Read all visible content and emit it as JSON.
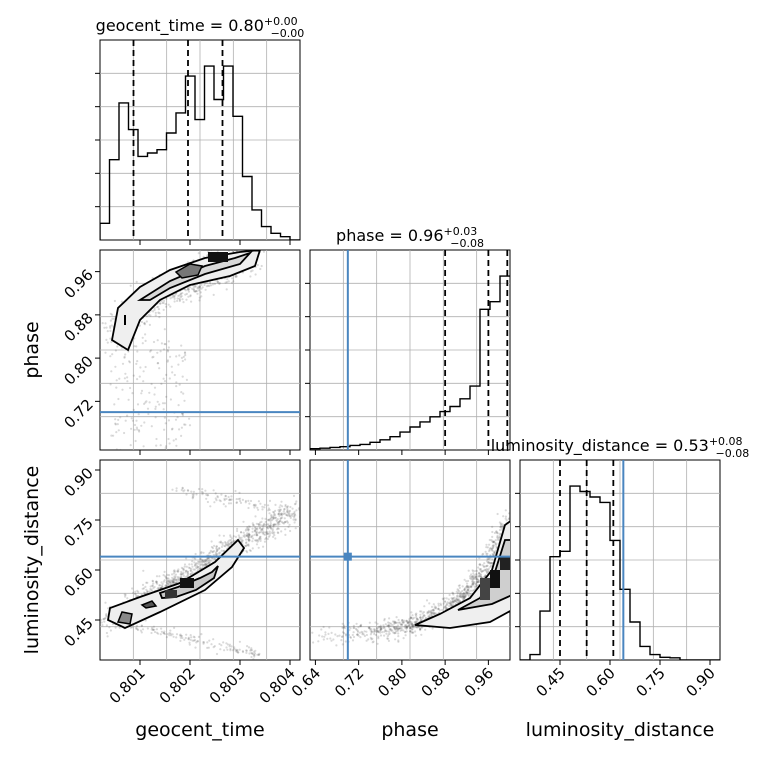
{
  "chart_data": {
    "type": "corner",
    "parameters": [
      "geocent_time",
      "phase",
      "luminosity_distance"
    ],
    "xlabels": [
      "geocent_time",
      "phase",
      "luminosity_distance"
    ],
    "ylabels": [
      "phase",
      "luminosity_distance"
    ],
    "injection": {
      "geocent_time": null,
      "phase": 0.7,
      "luminosity_distance": 0.64
    },
    "injection_color": "#4a86c0",
    "grid": true,
    "panels": {
      "geocent_time_hist": {
        "title": "geocent_time = 0.80",
        "title_sup": "+0.00",
        "title_sub": "−0.00",
        "xlim": [
          0.8002,
          0.8042
        ],
        "quantiles": [
          0.80087,
          0.80196,
          0.80265
        ],
        "bins": [
          0.8002,
          0.80039,
          0.80058,
          0.80077,
          0.80096,
          0.80115,
          0.80134,
          0.80153,
          0.80172,
          0.80191,
          0.8021,
          0.80229,
          0.80248,
          0.80267,
          0.80286,
          0.80305,
          0.80324,
          0.80343,
          0.80362,
          0.80381,
          0.804,
          0.8042
        ],
        "counts": [
          0.05,
          0.24,
          0.41,
          0.33,
          0.25,
          0.26,
          0.27,
          0.32,
          0.38,
          0.49,
          0.36,
          0.52,
          0.42,
          0.52,
          0.37,
          0.19,
          0.09,
          0.04,
          0.02,
          0.01,
          0.0
        ]
      },
      "phase_hist": {
        "title": "phase = 0.96",
        "title_sup": "+0.03",
        "title_sub": "−0.08",
        "xlim": [
          0.63,
          1.0
        ],
        "quantiles": [
          0.88,
          0.96,
          0.995
        ],
        "bins": [
          0.63,
          0.6485,
          0.667,
          0.6855,
          0.704,
          0.7225,
          0.741,
          0.7595,
          0.778,
          0.7965,
          0.815,
          0.8335,
          0.852,
          0.8705,
          0.889,
          0.9075,
          0.926,
          0.9445,
          0.963,
          0.9815,
          1.0
        ],
        "counts": [
          0.005,
          0.007,
          0.01,
          0.013,
          0.018,
          0.022,
          0.03,
          0.04,
          0.052,
          0.07,
          0.09,
          0.11,
          0.13,
          0.15,
          0.17,
          0.2,
          0.25,
          0.55,
          0.58,
          0.68
        ]
      },
      "luminosity_distance_hist": {
        "title": "luminosity_distance = 0.53",
        "title_sup": "+0.08",
        "title_sub": "−0.08",
        "xlim": [
          0.33,
          0.93
        ],
        "quantiles": [
          0.45,
          0.53,
          0.61
        ],
        "bins": [
          0.33,
          0.36,
          0.39,
          0.42,
          0.45,
          0.48,
          0.51,
          0.54,
          0.57,
          0.6,
          0.63,
          0.66,
          0.69,
          0.72,
          0.75,
          0.78,
          0.81,
          0.84,
          0.87,
          0.9,
          0.93
        ],
        "counts": [
          0.0,
          0.01,
          0.09,
          0.19,
          0.2,
          0.32,
          0.31,
          0.3,
          0.29,
          0.22,
          0.13,
          0.07,
          0.025,
          0.01,
          0.005,
          0.004,
          0.0,
          0.0,
          0.0,
          0.0
        ]
      },
      "geocent_time_vs_phase": {
        "xlim": [
          0.8002,
          0.8042
        ],
        "ylim": [
          0.63,
          1.0
        ],
        "yticks": [
          0.72,
          0.8,
          0.88,
          0.96
        ],
        "ytick_labels": [
          "0.72",
          "0.80",
          "0.88",
          "0.96"
        ]
      },
      "geocent_time_vs_luminosity_distance": {
        "xlim": [
          0.8002,
          0.8042
        ],
        "ylim": [
          0.33,
          0.93
        ],
        "xticks": [
          0.801,
          0.802,
          0.803,
          0.804
        ],
        "xtick_labels": [
          "0.801",
          "0.802",
          "0.803",
          "0.804"
        ],
        "yticks": [
          0.45,
          0.6,
          0.75,
          0.9
        ],
        "ytick_labels": [
          "0.45",
          "0.60",
          "0.75",
          "0.90"
        ]
      },
      "phase_vs_luminosity_distance": {
        "xlim": [
          0.63,
          1.0
        ],
        "ylim": [
          0.33,
          0.93
        ],
        "xticks": [
          0.64,
          0.72,
          0.8,
          0.88,
          0.96
        ],
        "xtick_labels": [
          "0.64",
          "0.72",
          "0.80",
          "0.88",
          "0.96"
        ]
      }
    },
    "luminosity_distance_xticks": [
      0.45,
      0.6,
      0.75,
      0.9
    ],
    "luminosity_distance_xtick_labels": [
      "0.45",
      "0.60",
      "0.75",
      "0.90"
    ]
  }
}
